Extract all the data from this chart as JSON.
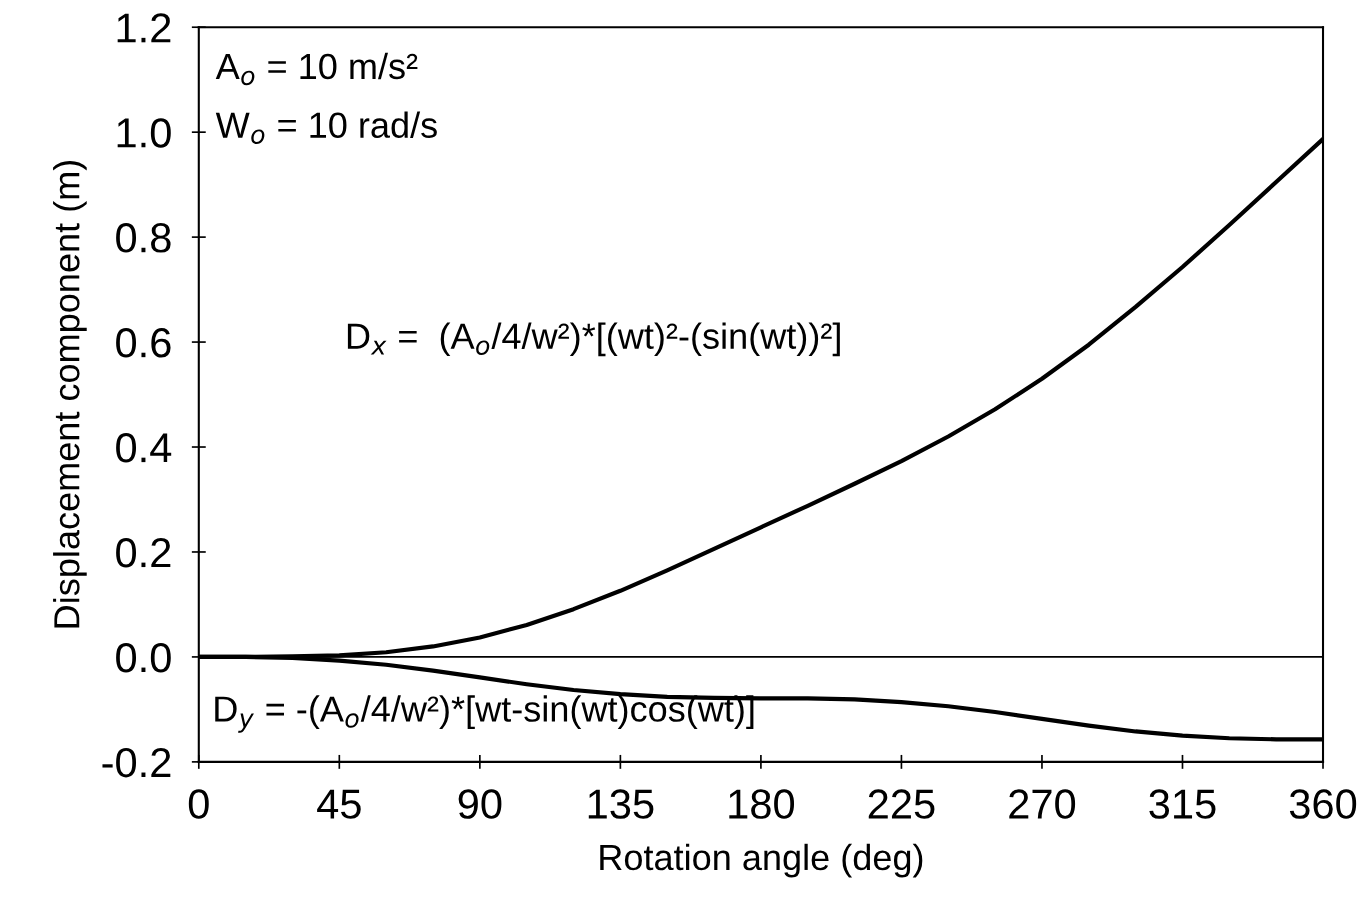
{
  "chart_data": {
    "type": "line",
    "xlabel": "Rotation angle (deg)",
    "ylabel": "Displacement component (m)",
    "x": [
      0,
      15,
      30,
      45,
      60,
      75,
      90,
      105,
      120,
      135,
      150,
      165,
      180,
      195,
      210,
      225,
      240,
      255,
      270,
      285,
      300,
      315,
      330,
      345,
      360
    ],
    "series": [
      {
        "color": "#000000",
        "values": [
          0.0,
          0.0,
          0.001,
          0.003,
          0.009,
          0.02,
          0.037,
          0.061,
          0.091,
          0.126,
          0.165,
          0.206,
          0.247,
          0.288,
          0.33,
          0.373,
          0.42,
          0.472,
          0.53,
          0.595,
          0.667,
          0.743,
          0.823,
          0.905,
          0.987
        ]
      },
      {
        "color": "#000000",
        "values": [
          0.0,
          0.0,
          -0.002,
          -0.007,
          -0.015,
          -0.026,
          -0.039,
          -0.052,
          -0.063,
          -0.071,
          -0.076,
          -0.078,
          -0.079,
          -0.079,
          -0.081,
          -0.086,
          -0.094,
          -0.105,
          -0.118,
          -0.131,
          -0.142,
          -0.15,
          -0.155,
          -0.157,
          -0.157
        ]
      }
    ],
    "xlim": [
      0,
      360
    ],
    "xticks": [
      0,
      45,
      90,
      135,
      180,
      225,
      270,
      315,
      360
    ],
    "ylim": [
      -0.2,
      1.2
    ],
    "yticks": [
      {
        "value": -0.2,
        "label": "-0.2"
      },
      {
        "value": 0.0,
        "label": "0.0"
      },
      {
        "value": 0.2,
        "label": "0.2"
      },
      {
        "value": 0.4,
        "label": "0.4"
      },
      {
        "value": 0.6,
        "label": "0.6"
      },
      {
        "value": 0.8,
        "label": "0.8"
      },
      {
        "value": 1.0,
        "label": "1.0"
      },
      {
        "value": 1.2,
        "label": "1.2"
      }
    ],
    "ref_lines": [
      {
        "axis": "y",
        "value": 0.0,
        "color": "#000000"
      }
    ],
    "annotations": [
      "A$_{o}$ = 10 m/s²",
      "W$_{o}$ = 10 rad/s",
      "D$_{x}$ =  (A$_{o}$/4/w²)*[(wt)²-(sin(wt))²]",
      "D$_{y}$ = -(A$_{o}$/4/w²)*[wt-sin(wt)cos(wt)]"
    ],
    "grid": false,
    "legend": false,
    "marker": "none",
    "line_style": "solid"
  }
}
